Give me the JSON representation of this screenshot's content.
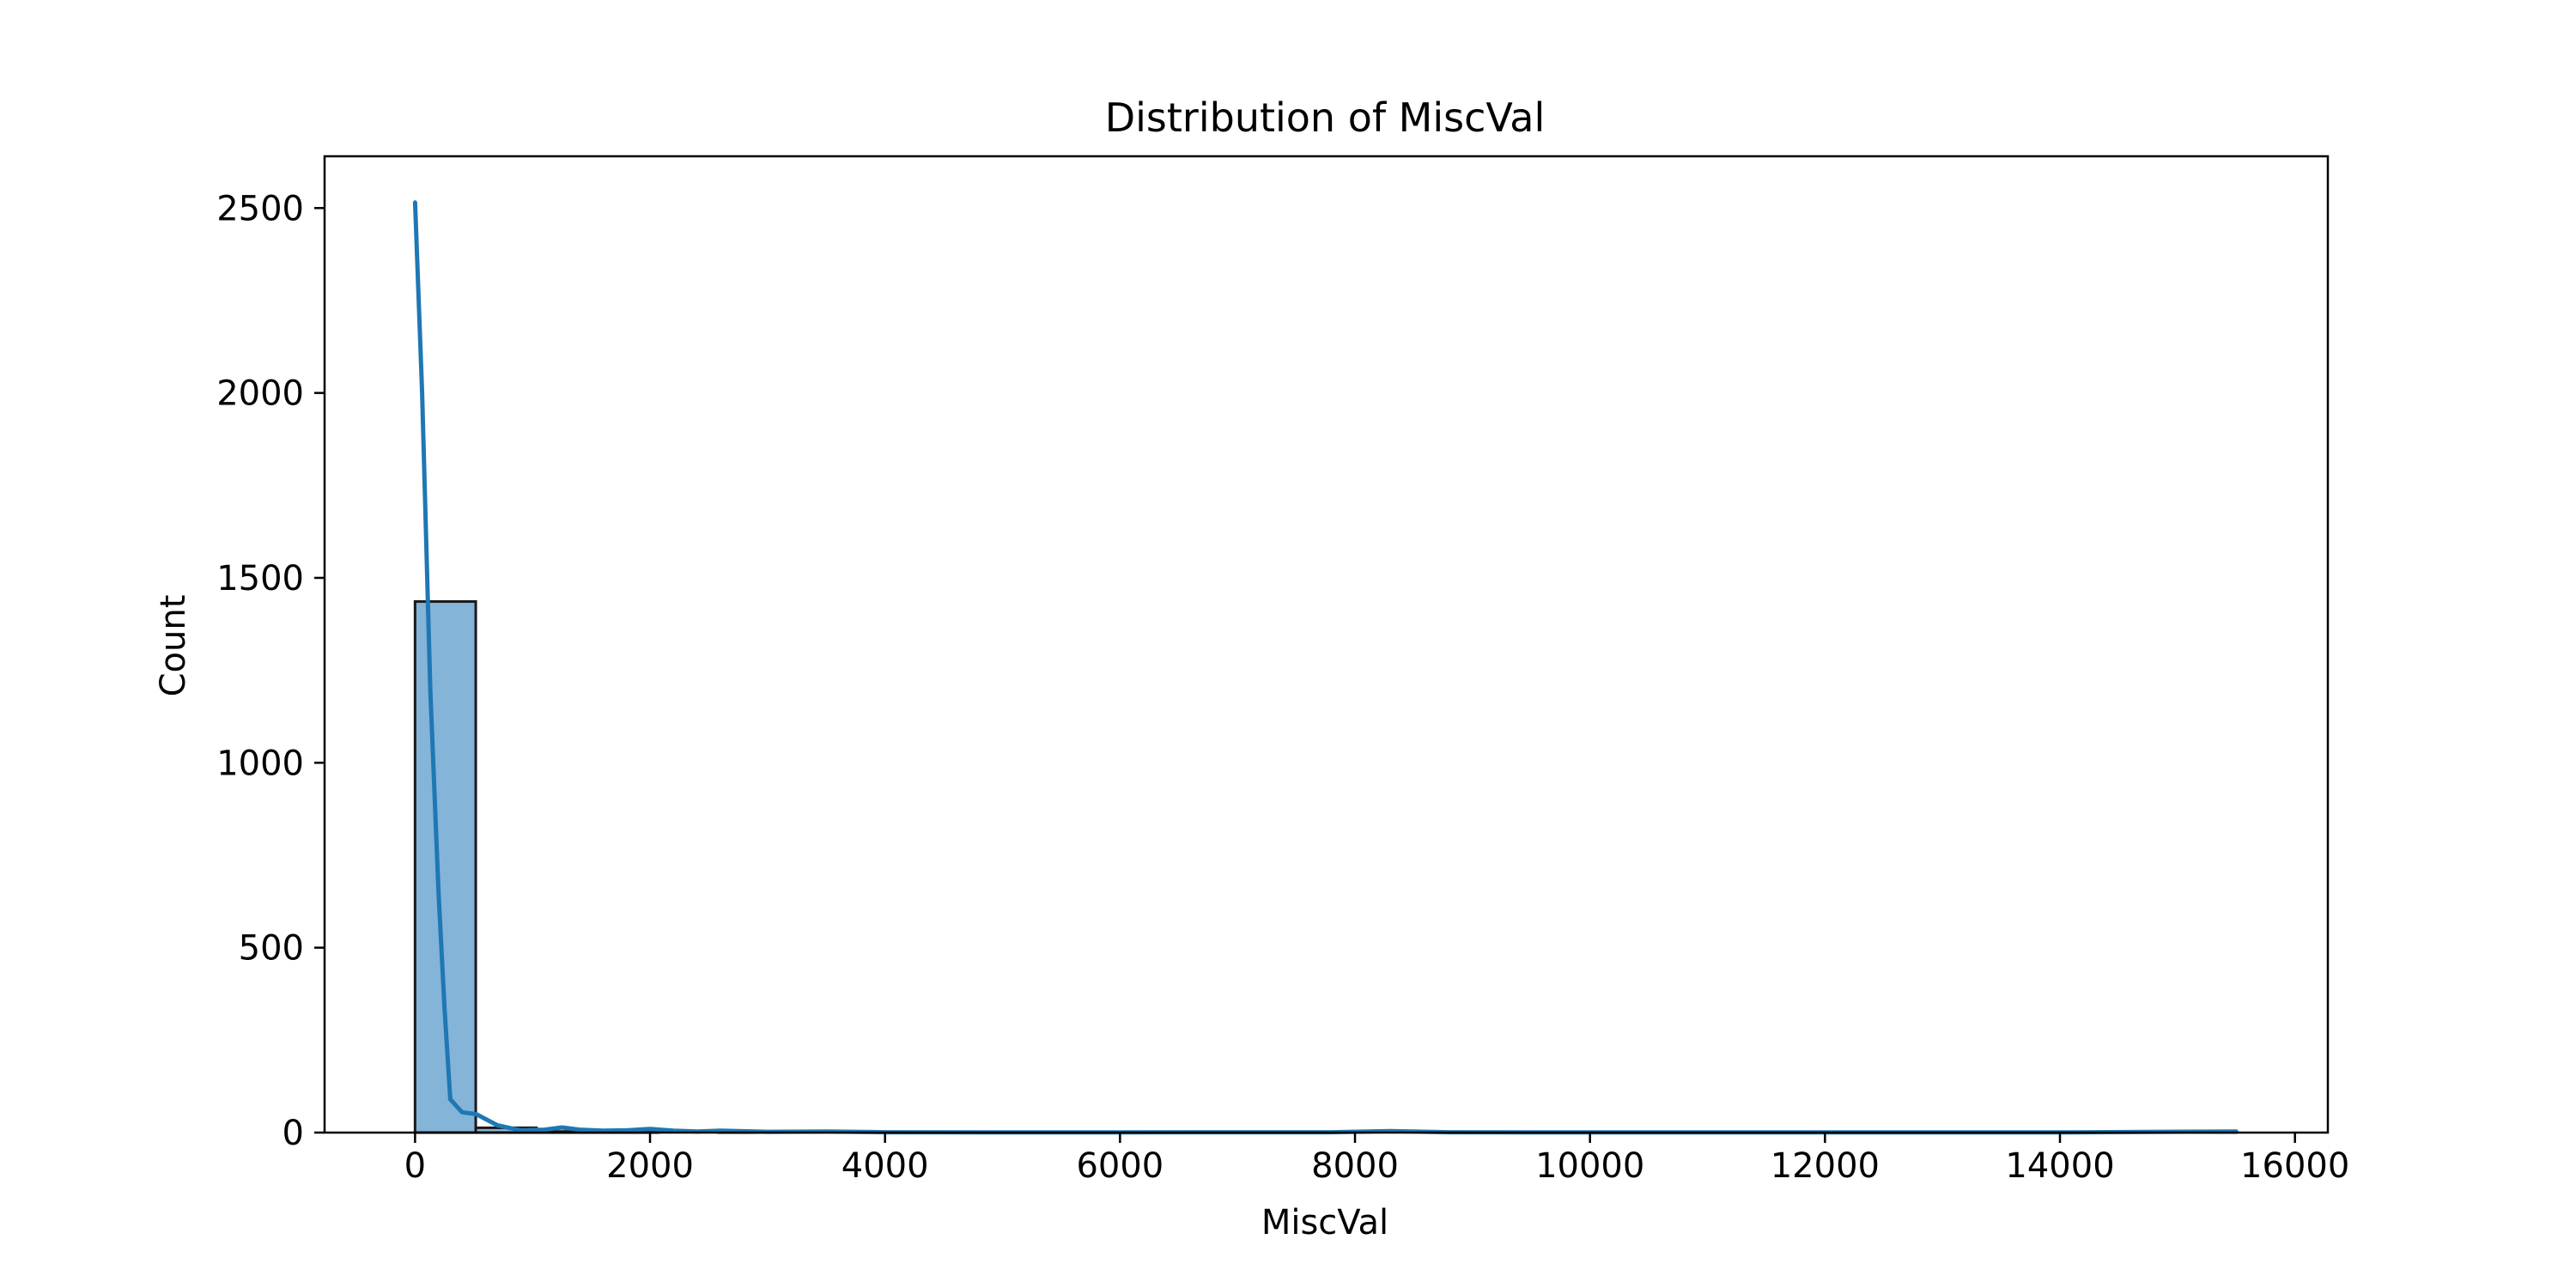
{
  "chart_data": {
    "type": "bar",
    "title": "Distribution of MiscVal",
    "xlabel": "MiscVal",
    "ylabel": "Count",
    "xlim": [
      -770,
      16280
    ],
    "ylim": [
      0,
      2640
    ],
    "xticks": [
      0,
      2000,
      4000,
      6000,
      8000,
      10000,
      12000,
      14000,
      16000
    ],
    "yticks": [
      0,
      500,
      1000,
      1500,
      2000,
      2500
    ],
    "bin_edges": [
      0,
      516.7,
      1033.3,
      1550,
      2066.7,
      2583.3,
      3100,
      3616.7,
      4133.3,
      4650,
      5166.7,
      5683.3,
      6200,
      6716.7,
      7233.3,
      7750,
      8266.7,
      8783.3,
      9300,
      9816.7,
      10333.3,
      10850,
      11366.7,
      11883.3,
      12400,
      12916.7,
      13433.3,
      13950,
      14466.7,
      14983.3,
      15500
    ],
    "values": [
      1436,
      13,
      3,
      6,
      0,
      1,
      0,
      1,
      0,
      0,
      0,
      0,
      0,
      0,
      0,
      0,
      0,
      0,
      0,
      0,
      0,
      0,
      0,
      0,
      0,
      0,
      0,
      0,
      0,
      1
    ],
    "kde": {
      "x": [
        0,
        60,
        130,
        200,
        250,
        300,
        400,
        520,
        700,
        900,
        1100,
        1250,
        1400,
        1600,
        1800,
        2000,
        2200,
        2400,
        2600,
        3000,
        3500,
        4000,
        5000,
        6000,
        7000,
        7800,
        8300,
        8800,
        10000,
        12000,
        14000,
        15500
      ],
      "y": [
        2515,
        2000,
        1200,
        650,
        340,
        90,
        55,
        50,
        20,
        6,
        8,
        14,
        8,
        5,
        6,
        10,
        5,
        3,
        5,
        2,
        3,
        1,
        0.5,
        0.5,
        1,
        1,
        4,
        1,
        0.5,
        0.5,
        0.5,
        3
      ]
    },
    "bar_color": "#84b4d8",
    "bar_edge_color": "#1a1a1a",
    "line_color": "#1f77b4",
    "grid": false,
    "legend": "none"
  }
}
